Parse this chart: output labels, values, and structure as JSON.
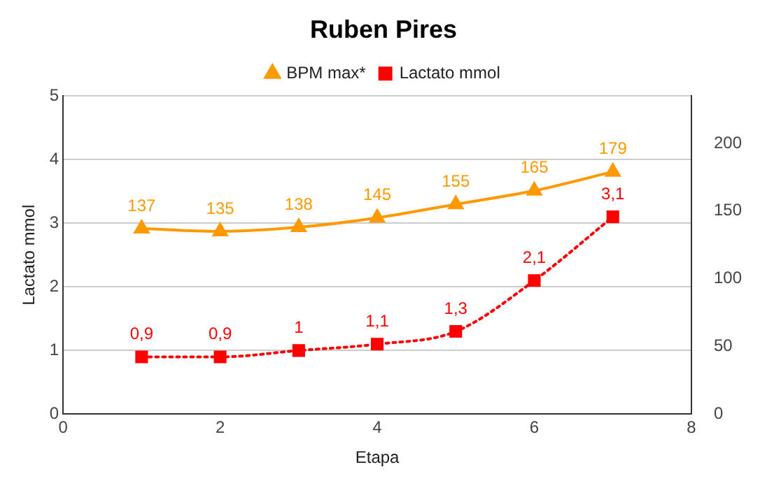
{
  "chart_data": {
    "type": "line",
    "title": "Ruben Pires",
    "xlabel": "Etapa",
    "ylabel": "Lactato mmol",
    "x": [
      1,
      2,
      3,
      4,
      5,
      6,
      7
    ],
    "series": [
      {
        "name": "BPM max*",
        "color": "#ff9900",
        "axis": "y2",
        "marker": "triangle",
        "line_style": "solid",
        "values": [
          137,
          135,
          138,
          145,
          155,
          165,
          179
        ],
        "value_labels": [
          "137",
          "135",
          "138",
          "145",
          "155",
          "165",
          "179"
        ]
      },
      {
        "name": "Lactato mmol",
        "color": "#ff0000",
        "marker": "square",
        "line_style": "dotted",
        "values": [
          0.9,
          0.9,
          1,
          1.1,
          1.3,
          2.1,
          3.1
        ],
        "value_labels": [
          "0,9",
          "0,9",
          "1",
          "1,1",
          "1,3",
          "2,1",
          "3,1"
        ]
      }
    ],
    "xlim": [
      0,
      8
    ],
    "xticks": [
      0,
      2,
      4,
      6,
      8
    ],
    "ylim": [
      0,
      5
    ],
    "yticks": [
      0,
      1,
      2,
      3,
      4,
      5
    ],
    "y2lim": [
      0,
      235
    ],
    "y2ticks": [
      0,
      50,
      100,
      150,
      200
    ],
    "grid": "y",
    "legend": "top"
  }
}
